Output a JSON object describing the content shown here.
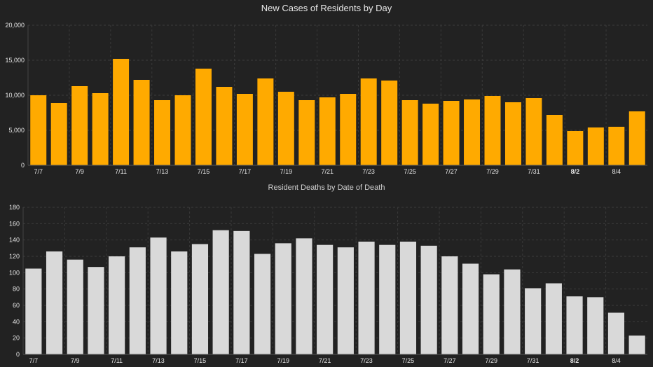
{
  "chart_data": [
    {
      "type": "bar",
      "title": "New Cases of Residents by Day",
      "categories": [
        "7/7",
        "7/8",
        "7/9",
        "7/10",
        "7/11",
        "7/12",
        "7/13",
        "7/14",
        "7/15",
        "7/16",
        "7/17",
        "7/18",
        "7/19",
        "7/20",
        "7/21",
        "7/22",
        "7/23",
        "7/24",
        "7/25",
        "7/26",
        "7/27",
        "7/28",
        "7/29",
        "7/30",
        "7/31",
        "8/1",
        "8/2",
        "8/3",
        "8/4",
        "8/5"
      ],
      "values": [
        10000,
        8900,
        11300,
        10300,
        15200,
        12200,
        9300,
        10000,
        13800,
        11200,
        10200,
        12400,
        10500,
        9300,
        9700,
        10200,
        12400,
        12100,
        9300,
        8800,
        9200,
        9400,
        9900,
        9000,
        9600,
        7200,
        4900,
        5400,
        5500,
        7700
      ],
      "x_tick_labels": [
        "7/7",
        "7/9",
        "7/11",
        "7/13",
        "7/15",
        "7/17",
        "7/19",
        "7/21",
        "7/23",
        "7/25",
        "7/27",
        "7/29",
        "7/31",
        "8/2",
        "8/4"
      ],
      "y_tick_labels": [
        "0",
        "5,000",
        "10,000",
        "15,000",
        "20,000"
      ],
      "ylim": [
        0,
        20000
      ],
      "color": "#ffaa00",
      "grid": true
    },
    {
      "type": "bar",
      "title": "Resident Deaths by Date of Death",
      "categories": [
        "7/7",
        "7/8",
        "7/9",
        "7/10",
        "7/11",
        "7/12",
        "7/13",
        "7/14",
        "7/15",
        "7/16",
        "7/17",
        "7/18",
        "7/19",
        "7/20",
        "7/21",
        "7/22",
        "7/23",
        "7/24",
        "7/25",
        "7/26",
        "7/27",
        "7/28",
        "7/29",
        "7/30",
        "7/31",
        "8/1",
        "8/2",
        "8/3",
        "8/4",
        "8/5"
      ],
      "values": [
        105,
        126,
        116,
        107,
        120,
        131,
        143,
        126,
        135,
        152,
        151,
        123,
        136,
        142,
        134,
        131,
        138,
        134,
        138,
        133,
        120,
        111,
        98,
        104,
        81,
        87,
        71,
        70,
        51,
        23
      ],
      "x_tick_labels": [
        "7/7",
        "7/9",
        "7/11",
        "7/13",
        "7/15",
        "7/17",
        "7/19",
        "7/21",
        "7/23",
        "7/25",
        "7/27",
        "7/29",
        "7/31",
        "8/2",
        "8/4"
      ],
      "y_tick_labels": [
        "0",
        "20",
        "40",
        "60",
        "80",
        "100",
        "120",
        "140",
        "160",
        "180"
      ],
      "ylim": [
        0,
        180
      ],
      "color": "#d9d9d9",
      "grid": true
    }
  ]
}
